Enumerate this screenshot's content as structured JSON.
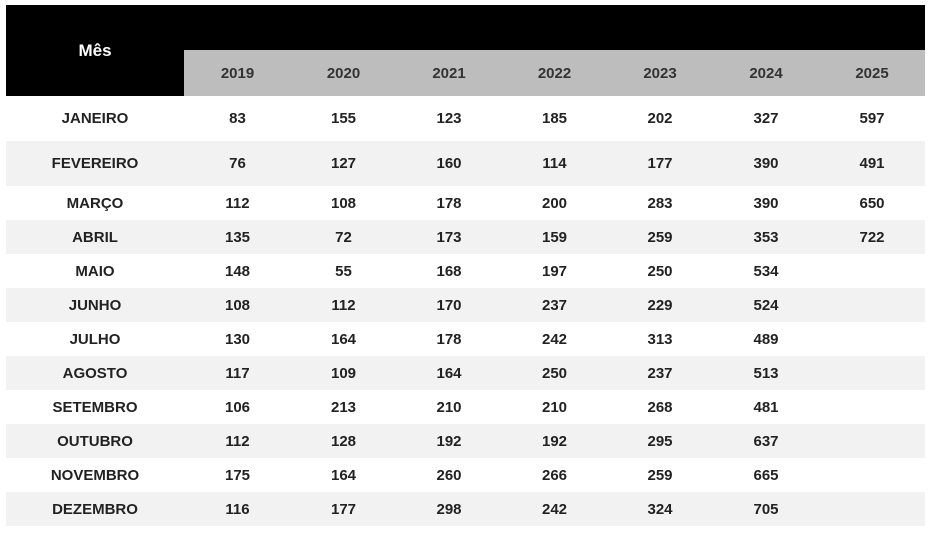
{
  "header": {
    "month_label": "Mês",
    "years": [
      "2019",
      "2020",
      "2021",
      "2022",
      "2023",
      "2024",
      "2025"
    ]
  },
  "rows": [
    {
      "month": "JANEIRO",
      "values": [
        "83",
        "155",
        "123",
        "185",
        "202",
        "327",
        "597"
      ]
    },
    {
      "month": "FEVEREIRO",
      "values": [
        "76",
        "127",
        "160",
        "114",
        "177",
        "390",
        "491"
      ]
    },
    {
      "month": "MARÇO",
      "values": [
        "112",
        "108",
        "178",
        "200",
        "283",
        "390",
        "650"
      ]
    },
    {
      "month": "ABRIL",
      "values": [
        "135",
        "72",
        "173",
        "159",
        "259",
        "353",
        "722"
      ]
    },
    {
      "month": "MAIO",
      "values": [
        "148",
        "55",
        "168",
        "197",
        "250",
        "534",
        ""
      ]
    },
    {
      "month": "JUNHO",
      "values": [
        "108",
        "112",
        "170",
        "237",
        "229",
        "524",
        ""
      ]
    },
    {
      "month": "JULHO",
      "values": [
        "130",
        "164",
        "178",
        "242",
        "313",
        "489",
        ""
      ]
    },
    {
      "month": "AGOSTO",
      "values": [
        "117",
        "109",
        "164",
        "250",
        "237",
        "513",
        ""
      ]
    },
    {
      "month": "SETEMBRO",
      "values": [
        "106",
        "213",
        "210",
        "210",
        "268",
        "481",
        ""
      ]
    },
    {
      "month": "OUTUBRO",
      "values": [
        "112",
        "128",
        "192",
        "192",
        "295",
        "637",
        ""
      ]
    },
    {
      "month": "NOVEMBRO",
      "values": [
        "175",
        "164",
        "260",
        "266",
        "259",
        "665",
        ""
      ]
    },
    {
      "month": "DEZEMBRO",
      "values": [
        "116",
        "177",
        "298",
        "242",
        "324",
        "705",
        ""
      ]
    }
  ]
}
